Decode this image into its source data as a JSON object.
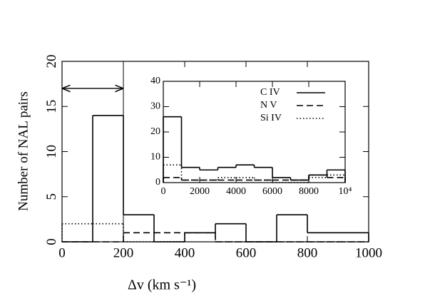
{
  "chart_data": [
    {
      "type": "histogram",
      "xlabel": "Δv (km s⁻¹)",
      "ylabel": "Number of NAL pairs",
      "bins": [
        0,
        100,
        200,
        300,
        400,
        500,
        600,
        700,
        800,
        900,
        1000
      ],
      "series": [
        {
          "name": "C IV",
          "color": "#000000",
          "dash": "solid",
          "values": [
            0,
            14,
            3,
            0,
            1,
            2,
            0,
            3,
            1,
            1
          ]
        },
        {
          "name": "N V",
          "color": "#000000",
          "dash": "dashed",
          "values": [
            0,
            0,
            1,
            1,
            1,
            0,
            0,
            0,
            0,
            0
          ]
        },
        {
          "name": "Si IV",
          "color": "#000000",
          "dash": "dotted",
          "values": [
            2,
            2,
            0,
            0,
            1,
            0,
            0,
            0,
            0,
            0
          ]
        }
      ],
      "xlim": [
        0,
        1000
      ],
      "xticks": [
        0,
        200,
        400,
        600,
        800,
        1000
      ],
      "ylim": [
        0,
        20
      ],
      "yticks": [
        0,
        5,
        10,
        15,
        20
      ],
      "vline_x": 200,
      "arrow_x": [
        0,
        200
      ],
      "arrow_y": 17
    },
    {
      "type": "histogram",
      "bins": [
        0,
        1000,
        2000,
        3000,
        4000,
        5000,
        6000,
        7000,
        8000,
        9000,
        10000
      ],
      "series": [
        {
          "color": "#000000",
          "dash": "solid",
          "values": [
            26,
            6,
            5,
            6,
            7,
            6,
            2,
            1,
            3,
            5
          ]
        },
        {
          "color": "#000000",
          "dash": "dashed",
          "values": [
            2,
            1,
            1,
            1,
            1,
            1,
            1,
            1,
            3,
            2
          ]
        },
        {
          "color": "#000000",
          "dash": "dotted",
          "values": [
            7,
            1,
            1,
            2,
            2,
            1,
            0,
            0,
            2,
            3
          ]
        }
      ],
      "xlim": [
        0,
        10000
      ],
      "xticks": [
        0,
        2000,
        4000,
        6000,
        8000,
        {
          "value": 10000,
          "label": "10⁴"
        }
      ],
      "ylim": [
        0,
        40
      ],
      "yticks": [
        0,
        10,
        20,
        30,
        40
      ]
    }
  ]
}
